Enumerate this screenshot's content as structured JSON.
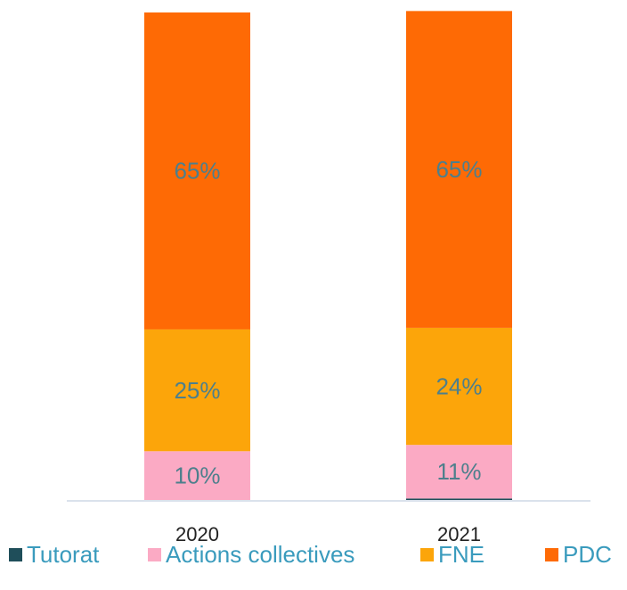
{
  "chart_data": {
    "type": "stacked_bar",
    "categories": [
      "2020",
      "2021"
    ],
    "ylim": [
      0,
      100
    ],
    "series": [
      {
        "name": "Tutorat",
        "color": "#1f4e5a",
        "values": [
          0,
          0.3
        ]
      },
      {
        "name": "Actions collectives",
        "color": "#fbaac4",
        "values": [
          10,
          11
        ],
        "value_labels": [
          "10%",
          "11%"
        ]
      },
      {
        "name": "FNE",
        "color": "#fca50a",
        "values": [
          25,
          24
        ],
        "value_labels": [
          "25%",
          "24%"
        ]
      },
      {
        "name": "PDC",
        "color": "#fe6a05",
        "values": [
          65,
          65
        ],
        "value_labels": [
          "65%",
          "65%"
        ]
      }
    ]
  }
}
